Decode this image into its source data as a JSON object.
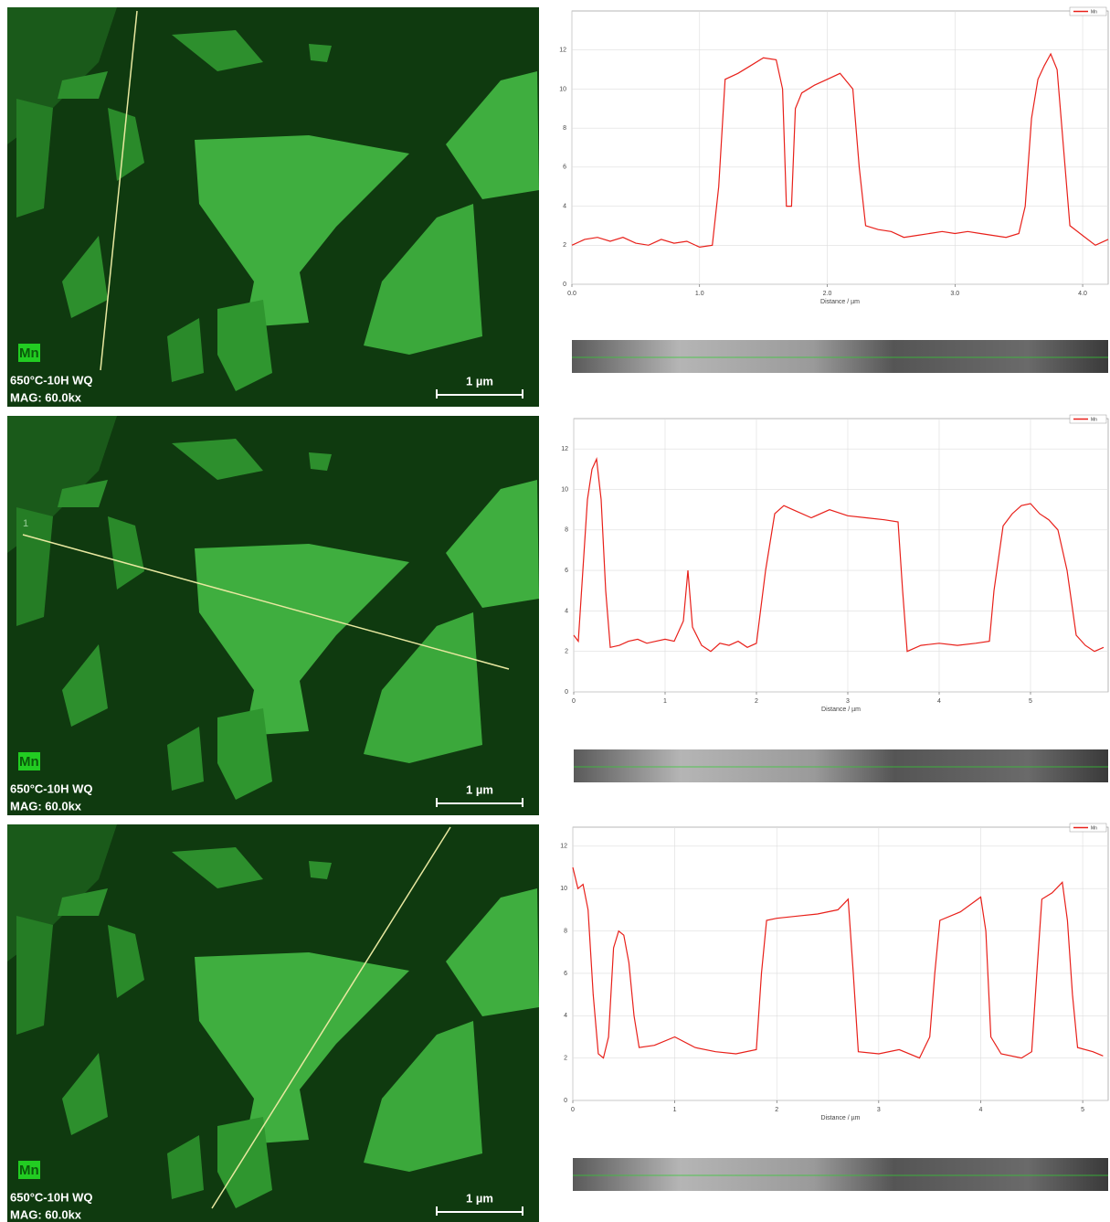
{
  "micrographs": [
    {
      "element": "Mn",
      "sample": "650°C-10H WQ",
      "magnification": "MAG: 60.0kx",
      "scale": "1 µm"
    },
    {
      "element": "Mn",
      "sample": "650°C-10H WQ",
      "magnification": "MAG: 60.0kx",
      "scale": "1 µm",
      "marker": "1"
    },
    {
      "element": "Mn",
      "sample": "650°C-10H WQ",
      "magnification": "MAG: 60.0kx",
      "scale": "1 µm"
    }
  ],
  "chart_data": [
    {
      "type": "line",
      "x_label": "Distance / µm",
      "x": [
        0,
        0.1,
        0.2,
        0.3,
        0.4,
        0.5,
        0.6,
        0.7,
        0.8,
        0.9,
        1.0,
        1.1,
        1.15,
        1.2,
        1.3,
        1.4,
        1.5,
        1.6,
        1.65,
        1.68,
        1.72,
        1.75,
        1.8,
        1.9,
        2.0,
        2.1,
        2.2,
        2.25,
        2.3,
        2.4,
        2.5,
        2.6,
        2.7,
        2.8,
        2.9,
        3.0,
        3.1,
        3.2,
        3.3,
        3.4,
        3.5,
        3.55,
        3.6,
        3.65,
        3.7,
        3.75,
        3.8,
        3.85,
        3.9,
        4.0,
        4.1,
        4.2
      ],
      "series": [
        {
          "name": "Mn",
          "color": "#e8201a",
          "values": [
            2.0,
            2.3,
            2.4,
            2.2,
            2.4,
            2.1,
            2.0,
            2.3,
            2.1,
            2.2,
            1.9,
            2.0,
            5,
            10.5,
            10.8,
            11.2,
            11.6,
            11.5,
            10,
            4,
            4,
            9,
            9.8,
            10.2,
            10.5,
            10.8,
            10,
            6,
            3,
            2.8,
            2.7,
            2.4,
            2.5,
            2.6,
            2.7,
            2.6,
            2.7,
            2.6,
            2.5,
            2.4,
            2.6,
            4,
            8.5,
            10.5,
            11.2,
            11.8,
            11,
            7,
            3,
            2.5,
            2.0,
            2.3
          ]
        }
      ],
      "xlim": [
        0,
        4.2
      ],
      "ylim": [
        0,
        14
      ],
      "xticks": [
        {
          "value": 0,
          "label": "0.0"
        },
        {
          "value": 1,
          "label": "1.0"
        },
        {
          "value": 2,
          "label": "2.0"
        },
        {
          "value": 3,
          "label": "3.0"
        },
        {
          "value": 4,
          "label": "4.0"
        }
      ],
      "yticks": [
        0,
        2,
        4,
        6,
        8,
        10,
        12
      ],
      "grid": true,
      "legend": "top-right"
    },
    {
      "type": "line",
      "x_label": "Distance / µm",
      "x": [
        0,
        0.05,
        0.1,
        0.15,
        0.2,
        0.25,
        0.3,
        0.35,
        0.4,
        0.5,
        0.6,
        0.7,
        0.8,
        0.9,
        1.0,
        1.1,
        1.2,
        1.25,
        1.3,
        1.4,
        1.5,
        1.6,
        1.7,
        1.8,
        1.9,
        2.0,
        2.1,
        2.2,
        2.3,
        2.4,
        2.6,
        2.8,
        3.0,
        3.2,
        3.4,
        3.55,
        3.6,
        3.65,
        3.8,
        4.0,
        4.2,
        4.4,
        4.55,
        4.6,
        4.7,
        4.8,
        4.9,
        5.0,
        5.1,
        5.2,
        5.3,
        5.4,
        5.5,
        5.6,
        5.7,
        5.8
      ],
      "series": [
        {
          "name": "Mn",
          "color": "#e8201a",
          "values": [
            2.8,
            2.5,
            6,
            9.5,
            11,
            11.5,
            9.5,
            5,
            2.2,
            2.3,
            2.5,
            2.6,
            2.4,
            2.5,
            2.6,
            2.5,
            3.5,
            6.0,
            3.2,
            2.3,
            2.0,
            2.4,
            2.3,
            2.5,
            2.2,
            2.4,
            6,
            8.8,
            9.2,
            9.0,
            8.6,
            9.0,
            8.7,
            8.6,
            8.5,
            8.4,
            5,
            2.0,
            2.3,
            2.4,
            2.3,
            2.4,
            2.5,
            5,
            8.2,
            8.8,
            9.2,
            9.3,
            8.8,
            8.5,
            8.0,
            6,
            2.8,
            2.3,
            2.0,
            2.2
          ]
        }
      ],
      "xlim": [
        0,
        5.85
      ],
      "ylim": [
        0,
        13.5
      ],
      "xticks": [
        0,
        1,
        2,
        3,
        4,
        5
      ],
      "yticks": [
        0,
        2,
        4,
        6,
        8,
        10,
        12
      ],
      "grid": true,
      "legend": "top-right"
    },
    {
      "type": "line",
      "x_label": "Distance / µm",
      "x": [
        0,
        0.05,
        0.1,
        0.15,
        0.2,
        0.25,
        0.3,
        0.35,
        0.4,
        0.45,
        0.5,
        0.55,
        0.6,
        0.65,
        0.8,
        1.0,
        1.2,
        1.4,
        1.6,
        1.8,
        1.85,
        1.9,
        2.0,
        2.2,
        2.4,
        2.6,
        2.7,
        2.75,
        2.8,
        3.0,
        3.2,
        3.4,
        3.5,
        3.55,
        3.6,
        3.8,
        4.0,
        4.05,
        4.1,
        4.2,
        4.4,
        4.5,
        4.55,
        4.6,
        4.7,
        4.8,
        4.85,
        4.9,
        4.95,
        5.1,
        5.2
      ],
      "series": [
        {
          "name": "Mn",
          "color": "#e8201a",
          "values": [
            11,
            10,
            10.2,
            9,
            5,
            2.2,
            2.0,
            3,
            7.2,
            8.0,
            7.8,
            6.5,
            4,
            2.5,
            2.6,
            3.0,
            2.5,
            2.3,
            2.2,
            2.4,
            6,
            8.5,
            8.6,
            8.7,
            8.8,
            9.0,
            9.5,
            6,
            2.3,
            2.2,
            2.4,
            2.0,
            3.0,
            6,
            8.5,
            8.9,
            9.6,
            8,
            3,
            2.2,
            2.0,
            2.3,
            6,
            9.5,
            9.8,
            10.3,
            8.5,
            5,
            2.5,
            2.3,
            2.1
          ]
        }
      ],
      "xlim": [
        0,
        5.25
      ],
      "ylim": [
        0,
        12.9
      ],
      "xticks": [
        0,
        1,
        2,
        3,
        4,
        5
      ],
      "yticks": [
        0,
        2,
        4,
        6,
        8,
        10,
        12
      ],
      "grid": true,
      "legend": "top-right"
    }
  ]
}
